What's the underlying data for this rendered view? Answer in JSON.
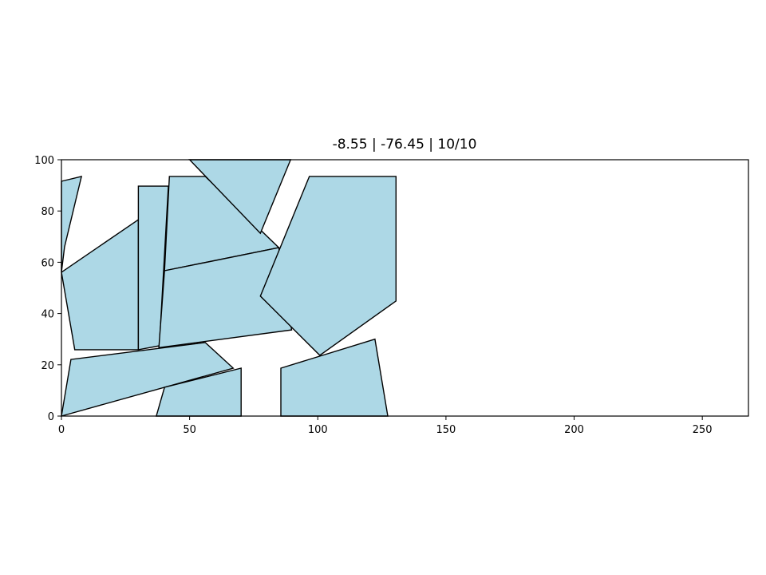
{
  "chart_data": {
    "type": "scatter",
    "title": "-8.55 | -76.45 | 10/10",
    "xlabel": "",
    "ylabel": "",
    "xlim": [
      0,
      268
    ],
    "ylim": [
      0,
      100
    ],
    "x_ticks": [
      0,
      50,
      100,
      150,
      200,
      250
    ],
    "y_ticks": [
      0,
      20,
      40,
      60,
      80,
      100
    ],
    "grid": false,
    "legend": "none",
    "polygon_fill": "#add8e6",
    "polygon_edge": "#000000",
    "polygons": [
      {
        "vertices": [
          [
            0,
            91.6
          ],
          [
            7.8,
            93.5
          ],
          [
            1.2,
            66.0
          ],
          [
            0,
            56.1
          ]
        ]
      },
      {
        "vertices": [
          [
            0,
            56.1
          ],
          [
            30.0,
            76.6
          ],
          [
            30.0,
            25.9
          ],
          [
            5.2,
            25.9
          ]
        ]
      },
      {
        "vertices": [
          [
            30.0,
            89.7
          ],
          [
            41.7,
            89.7
          ],
          [
            38.2,
            27.4
          ],
          [
            30.0,
            25.9
          ]
        ]
      },
      {
        "vertices": [
          [
            42.1,
            93.5
          ],
          [
            56.1,
            93.5
          ],
          [
            84.8,
            65.7
          ],
          [
            40.2,
            56.7
          ]
        ]
      },
      {
        "vertices": [
          [
            50.0,
            100.0
          ],
          [
            89.4,
            100.0
          ],
          [
            77.6,
            71.3
          ]
        ]
      },
      {
        "vertices": [
          [
            40.2,
            56.7
          ],
          [
            84.8,
            65.7
          ],
          [
            89.8,
            33.6
          ],
          [
            38.0,
            26.7
          ]
        ]
      },
      {
        "vertices": [
          [
            96.7,
            93.5
          ],
          [
            130.5,
            93.5
          ],
          [
            130.5,
            44.9
          ],
          [
            100.8,
            23.7
          ],
          [
            77.6,
            46.8
          ]
        ]
      },
      {
        "vertices": [
          [
            0,
            0
          ],
          [
            67.0,
            18.7
          ],
          [
            56.1,
            28.7
          ],
          [
            3.7,
            22.1
          ]
        ]
      },
      {
        "vertices": [
          [
            37.0,
            0
          ],
          [
            70.1,
            0
          ],
          [
            70.1,
            18.7
          ],
          [
            40.2,
            11.2
          ]
        ]
      },
      {
        "vertices": [
          [
            85.6,
            0
          ],
          [
            127.3,
            0
          ],
          [
            122.3,
            30.0
          ],
          [
            85.6,
            18.7
          ]
        ]
      }
    ]
  }
}
